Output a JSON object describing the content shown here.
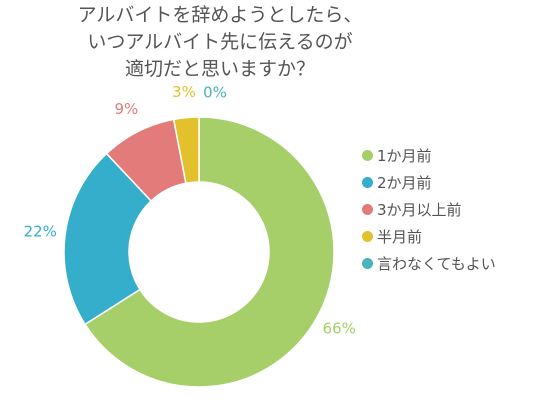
{
  "chart_data": {
    "type": "pie",
    "style": "donut",
    "title": [
      "アルバイトを辞めようとしたら、",
      "いつアルバイト先に伝えるのが",
      "適切だと思いますか？"
    ],
    "categories": [
      "1か月前",
      "2か月前",
      "3か月以上前",
      "半月前",
      "言わなくてもよい"
    ],
    "values": [
      66,
      22,
      9,
      3,
      0
    ],
    "value_labels": [
      "66%",
      "22%",
      "9%",
      "3%",
      "0%"
    ],
    "colors": [
      "#a6cf6a",
      "#35aecb",
      "#e37b7b",
      "#e2c12c",
      "#47b3bb"
    ],
    "legend_position": "right"
  }
}
